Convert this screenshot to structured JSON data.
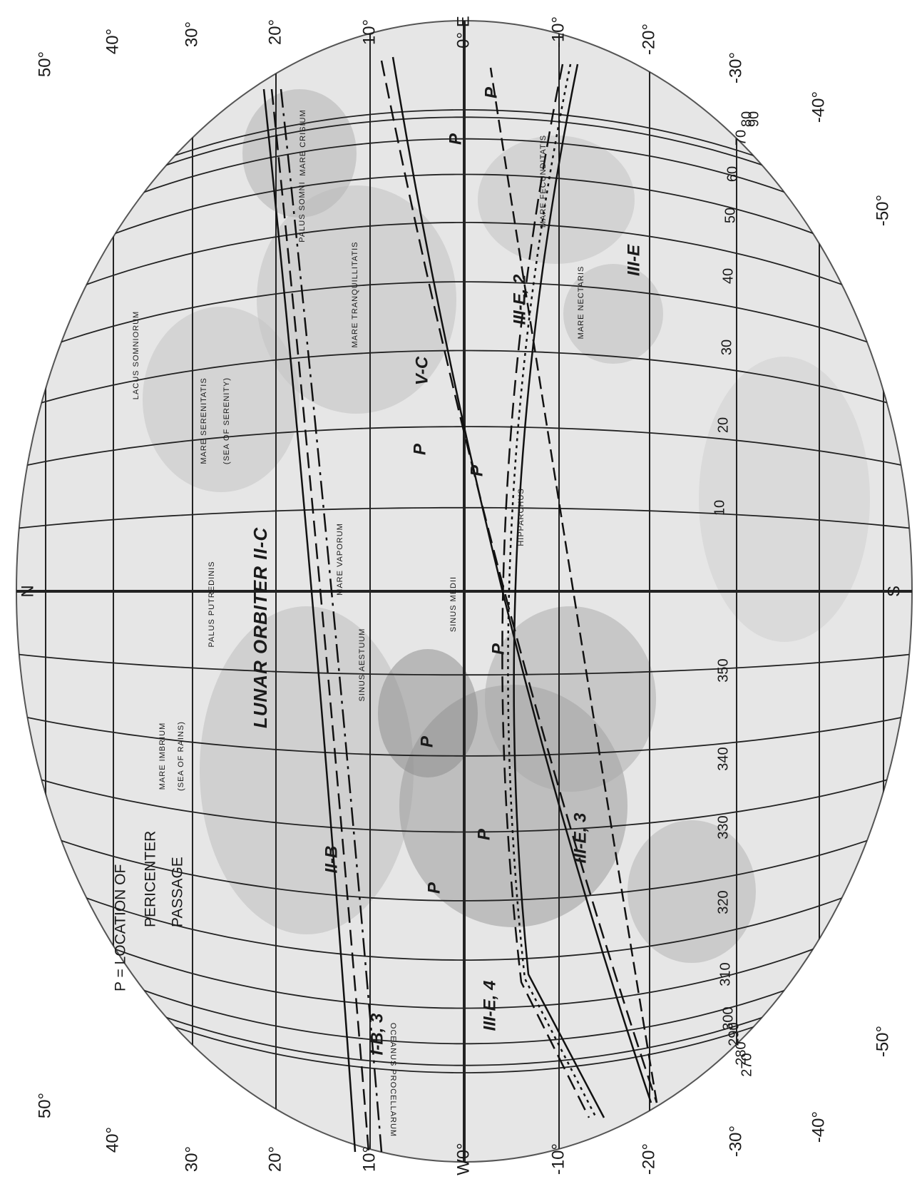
{
  "map": {
    "north": "N",
    "south": "S",
    "latitude_top": [
      "50°",
      "40°",
      "30°",
      "20°",
      "10°",
      "0° E",
      "-10°",
      "-20°",
      "-30°",
      "-40°",
      "-50°"
    ],
    "latitude_bottom": [
      "50°",
      "40°",
      "30°",
      "20°",
      "10°",
      "W0°",
      "-10°",
      "-20°",
      "-30°",
      "-40°",
      "-50°"
    ],
    "longitude_east": [
      "10",
      "20",
      "30",
      "40",
      "50",
      "60",
      "70",
      "80",
      "90"
    ],
    "longitude_west": [
      "350",
      "340",
      "330",
      "320",
      "310",
      "300",
      "290",
      "280",
      "270"
    ],
    "legend": [
      "P = LOCATION OF",
      "PERICENTER",
      "PASSAGE"
    ],
    "mission_label": "LUNAR ORBITER II-C",
    "track_labels": [
      "II-B",
      "I-B, 3",
      "III-E, 4",
      "III-E, 3",
      "III-E, 2",
      "III-E",
      "V-C"
    ],
    "pericenter_marks": [
      "P",
      "P",
      "P",
      "P",
      "P",
      "P",
      "P",
      "P"
    ],
    "features": [
      "MARE IMBRIUM",
      "(SEA OF RAINS)",
      "MARE SERENITATIS",
      "(SEA OF SERENITY)",
      "MARE TRANQUILLITATIS",
      "MARE CRISIUM",
      "MARE FECUNDITATIS",
      "MARE NECTARIS",
      "MARE VAPORUM",
      "SINUS MEDII",
      "HIPPARCHUS",
      "OCEANUS PROCELLARUM",
      "LACUS SOMNIORUM",
      "PALUS SOMNI",
      "SINUS AESTUUM",
      "PALUS PUTREDINIS"
    ]
  }
}
